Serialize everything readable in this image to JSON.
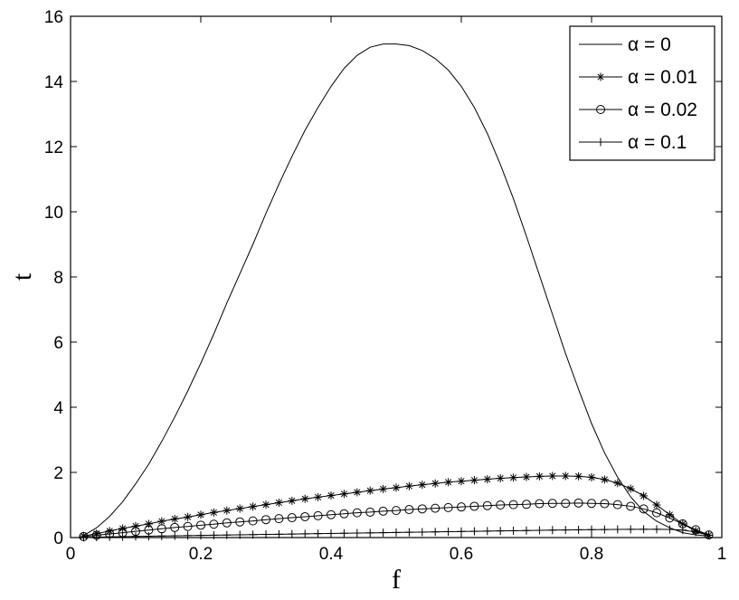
{
  "chart_data": {
    "type": "line",
    "title": "",
    "xlabel": "f",
    "ylabel": "t",
    "xlim": [
      0,
      1
    ],
    "ylim": [
      0,
      16
    ],
    "xticks": [
      0,
      0.2,
      0.4,
      0.6,
      0.8,
      1
    ],
    "xtick_labels": [
      "0",
      "0.2",
      "0.4",
      "0.6",
      "0.8",
      "1"
    ],
    "yticks": [
      0,
      2,
      4,
      6,
      8,
      10,
      12,
      14,
      16
    ],
    "ytick_labels": [
      "0",
      "2",
      "4",
      "6",
      "8",
      "10",
      "12",
      "14",
      "16"
    ],
    "grid": false,
    "legend_position": "top-right",
    "line_color": "#000000",
    "series": [
      {
        "name": "α = 0",
        "marker": "none",
        "x": [
          0.02,
          0.04,
          0.06,
          0.08,
          0.1,
          0.12,
          0.14,
          0.16,
          0.18,
          0.2,
          0.22,
          0.24,
          0.26,
          0.28,
          0.3,
          0.32,
          0.34,
          0.36,
          0.38,
          0.4,
          0.42,
          0.44,
          0.46,
          0.48,
          0.5,
          0.52,
          0.54,
          0.56,
          0.58,
          0.6,
          0.62,
          0.64,
          0.66,
          0.68,
          0.7,
          0.72,
          0.74,
          0.76,
          0.78,
          0.8,
          0.82,
          0.84,
          0.86,
          0.88,
          0.9,
          0.92,
          0.94,
          0.96,
          0.98
        ],
        "y": [
          0.06,
          0.3,
          0.65,
          1.1,
          1.65,
          2.25,
          2.95,
          3.7,
          4.5,
          5.35,
          6.25,
          7.2,
          8.1,
          9.0,
          9.95,
          10.85,
          11.7,
          12.5,
          13.2,
          13.85,
          14.4,
          14.8,
          15.05,
          15.15,
          15.15,
          15.1,
          14.95,
          14.7,
          14.35,
          13.85,
          13.2,
          12.4,
          11.45,
          10.4,
          9.25,
          8.05,
          6.85,
          5.65,
          4.55,
          3.5,
          2.6,
          1.85,
          1.25,
          0.8,
          0.5,
          0.3,
          0.15,
          0.08,
          0.05
        ]
      },
      {
        "name": "α = 0.01",
        "marker": "asterisk",
        "x": [
          0.02,
          0.04,
          0.06,
          0.08,
          0.1,
          0.12,
          0.14,
          0.16,
          0.18,
          0.2,
          0.22,
          0.24,
          0.26,
          0.28,
          0.3,
          0.32,
          0.34,
          0.36,
          0.38,
          0.4,
          0.42,
          0.44,
          0.46,
          0.48,
          0.5,
          0.52,
          0.54,
          0.56,
          0.58,
          0.6,
          0.62,
          0.64,
          0.66,
          0.68,
          0.7,
          0.72,
          0.74,
          0.76,
          0.78,
          0.8,
          0.82,
          0.84,
          0.86,
          0.88,
          0.9,
          0.92,
          0.94,
          0.96,
          0.98
        ],
        "y": [
          0.05,
          0.12,
          0.2,
          0.28,
          0.35,
          0.42,
          0.5,
          0.57,
          0.63,
          0.7,
          0.77,
          0.83,
          0.89,
          0.95,
          1.01,
          1.07,
          1.13,
          1.19,
          1.24,
          1.29,
          1.34,
          1.39,
          1.44,
          1.49,
          1.53,
          1.58,
          1.62,
          1.66,
          1.7,
          1.73,
          1.76,
          1.79,
          1.82,
          1.84,
          1.86,
          1.88,
          1.89,
          1.89,
          1.88,
          1.85,
          1.78,
          1.67,
          1.5,
          1.28,
          1.0,
          0.7,
          0.42,
          0.2,
          0.07
        ]
      },
      {
        "name": "α = 0.02",
        "marker": "circle",
        "x": [
          0.02,
          0.04,
          0.06,
          0.08,
          0.1,
          0.12,
          0.14,
          0.16,
          0.18,
          0.2,
          0.22,
          0.24,
          0.26,
          0.28,
          0.3,
          0.32,
          0.34,
          0.36,
          0.38,
          0.4,
          0.42,
          0.44,
          0.46,
          0.48,
          0.5,
          0.52,
          0.54,
          0.56,
          0.58,
          0.6,
          0.62,
          0.64,
          0.66,
          0.68,
          0.7,
          0.72,
          0.74,
          0.76,
          0.78,
          0.8,
          0.82,
          0.84,
          0.86,
          0.88,
          0.9,
          0.92,
          0.94,
          0.96,
          0.98
        ],
        "y": [
          0.03,
          0.07,
          0.11,
          0.15,
          0.19,
          0.23,
          0.27,
          0.31,
          0.34,
          0.38,
          0.41,
          0.45,
          0.48,
          0.51,
          0.55,
          0.58,
          0.61,
          0.64,
          0.67,
          0.7,
          0.73,
          0.76,
          0.78,
          0.81,
          0.83,
          0.86,
          0.88,
          0.9,
          0.92,
          0.94,
          0.96,
          0.98,
          1.0,
          1.01,
          1.02,
          1.04,
          1.05,
          1.05,
          1.06,
          1.05,
          1.04,
          1.01,
          0.96,
          0.88,
          0.76,
          0.6,
          0.42,
          0.24,
          0.08
        ]
      },
      {
        "name": "α = 0.1",
        "marker": "plus",
        "x": [
          0.02,
          0.04,
          0.06,
          0.08,
          0.1,
          0.12,
          0.14,
          0.16,
          0.18,
          0.2,
          0.22,
          0.24,
          0.26,
          0.28,
          0.3,
          0.32,
          0.34,
          0.36,
          0.38,
          0.4,
          0.42,
          0.44,
          0.46,
          0.48,
          0.5,
          0.52,
          0.54,
          0.56,
          0.58,
          0.6,
          0.62,
          0.64,
          0.66,
          0.68,
          0.7,
          0.72,
          0.74,
          0.76,
          0.78,
          0.8,
          0.82,
          0.84,
          0.86,
          0.88,
          0.9,
          0.92,
          0.94,
          0.96,
          0.98
        ],
        "y": [
          0.005,
          0.012,
          0.02,
          0.027,
          0.034,
          0.04,
          0.047,
          0.053,
          0.06,
          0.066,
          0.072,
          0.078,
          0.084,
          0.09,
          0.096,
          0.102,
          0.108,
          0.114,
          0.12,
          0.126,
          0.132,
          0.138,
          0.144,
          0.15,
          0.156,
          0.162,
          0.168,
          0.174,
          0.18,
          0.186,
          0.192,
          0.198,
          0.204,
          0.21,
          0.216,
          0.222,
          0.228,
          0.234,
          0.238,
          0.242,
          0.246,
          0.25,
          0.252,
          0.254,
          0.254,
          0.25,
          0.23,
          0.17,
          0.07
        ]
      }
    ]
  }
}
